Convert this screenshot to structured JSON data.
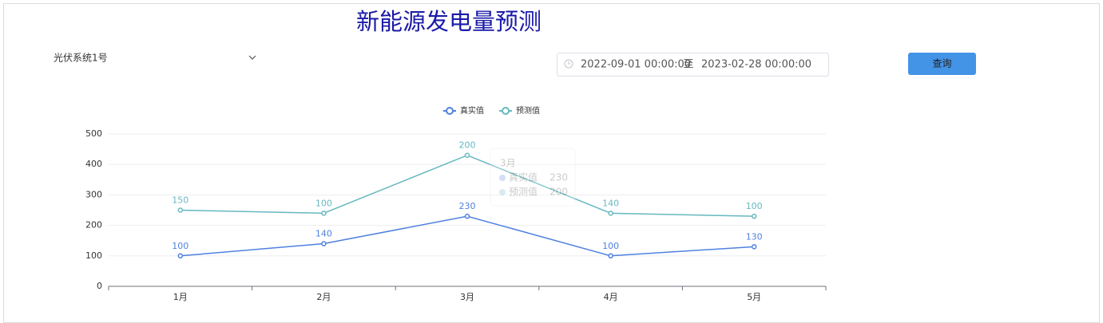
{
  "header": {
    "title": "新能源发电量预测"
  },
  "controls": {
    "station": "光伏系统1号",
    "date_start": "2022-09-01 00:00:00",
    "date_separator": "至",
    "date_end": "2023-02-28 00:00:00",
    "button": "查询"
  },
  "chart_data": {
    "type": "line",
    "stacked": true,
    "categories": [
      "1月",
      "2月",
      "3月",
      "4月",
      "5月"
    ],
    "series": [
      {
        "name": "真实值",
        "color": "#4f81e0",
        "values": [
          100,
          140,
          230,
          100,
          130
        ]
      },
      {
        "name": "预测值",
        "color": "#66b8c0",
        "values": [
          150,
          100,
          200,
          140,
          100
        ]
      }
    ],
    "ylim": [
      0,
      500
    ],
    "yticks": [
      0,
      100,
      200,
      300,
      400,
      500
    ],
    "grid": true,
    "legend": "top"
  }
}
